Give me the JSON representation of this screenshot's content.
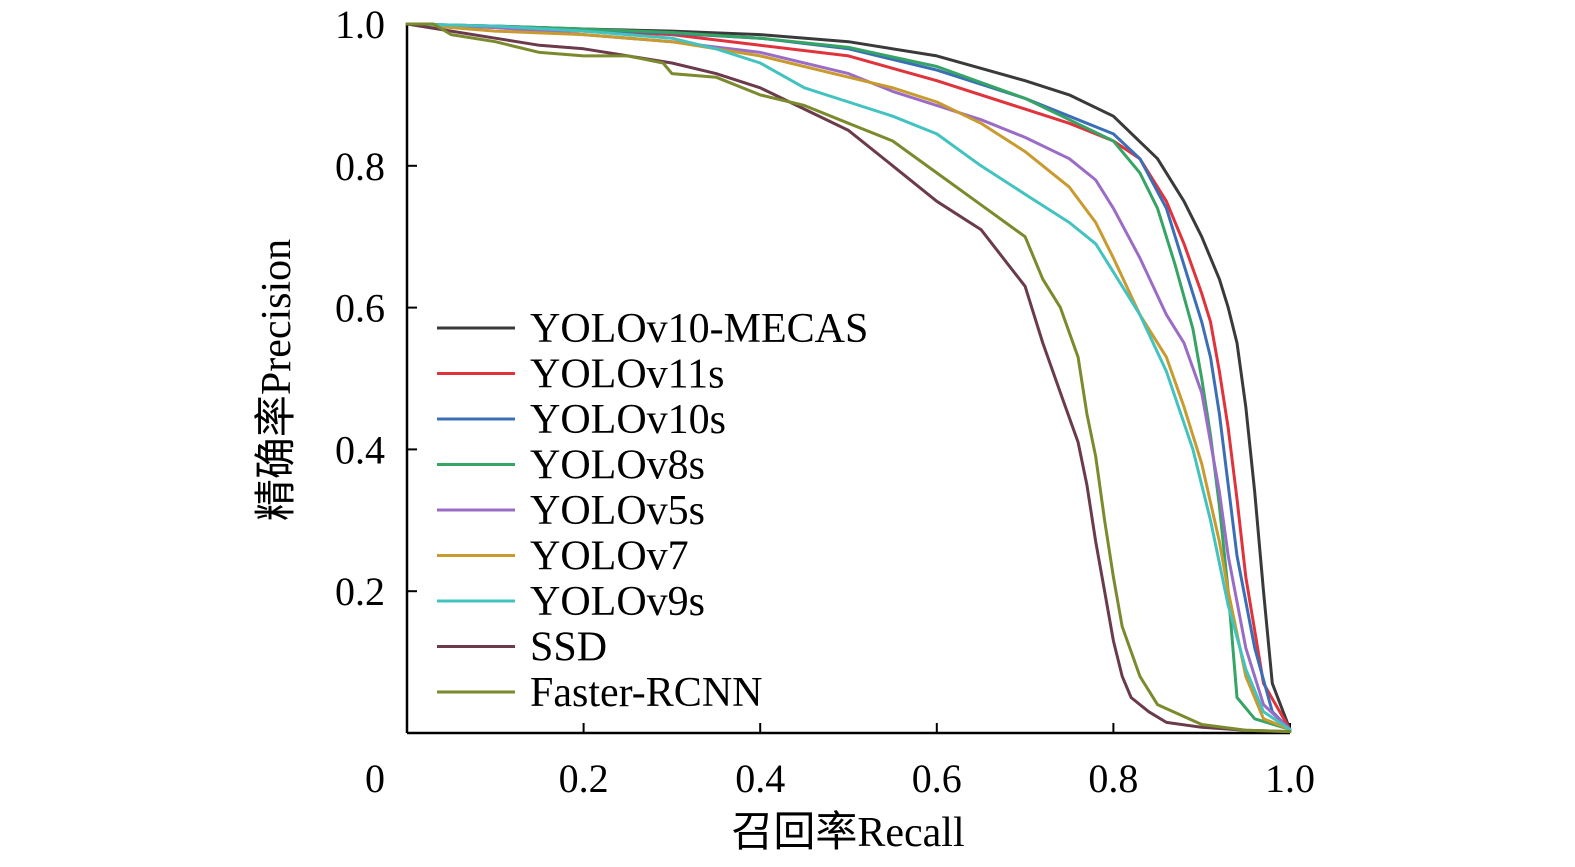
{
  "chart_data": {
    "type": "line",
    "xlabel": "召回率Recall",
    "ylabel": "精确率Precision",
    "xlim": [
      0,
      1
    ],
    "ylim": [
      0,
      1
    ],
    "x_ticks": [
      {
        "value": 0,
        "label": "0"
      },
      {
        "value": 0.2,
        "label": "0.2"
      },
      {
        "value": 0.4,
        "label": "0.4"
      },
      {
        "value": 0.6,
        "label": "0.6"
      },
      {
        "value": 0.8,
        "label": "0.8"
      },
      {
        "value": 1.0,
        "label": "1.0"
      }
    ],
    "y_ticks": [
      {
        "value": 0.2,
        "label": "0.2"
      },
      {
        "value": 0.4,
        "label": "0.4"
      },
      {
        "value": 0.6,
        "label": "0.6"
      },
      {
        "value": 0.8,
        "label": "0.8"
      },
      {
        "value": 1.0,
        "label": "1.0"
      }
    ],
    "grid": false,
    "legend_position": "center-left",
    "series": [
      {
        "name": "YOLOv10-MECAS",
        "color": "#3a3a3a",
        "x": [
          0,
          0.1,
          0.2,
          0.3,
          0.4,
          0.5,
          0.6,
          0.7,
          0.75,
          0.8,
          0.85,
          0.88,
          0.9,
          0.92,
          0.93,
          0.94,
          0.95,
          0.96,
          0.97,
          0.98,
          1.0
        ],
        "y": [
          1.0,
          0.997,
          0.993,
          0.99,
          0.985,
          0.975,
          0.955,
          0.92,
          0.9,
          0.87,
          0.81,
          0.75,
          0.7,
          0.64,
          0.6,
          0.55,
          0.46,
          0.34,
          0.2,
          0.07,
          0.005
        ]
      },
      {
        "name": "YOLOv11s",
        "color": "#e0333c",
        "x": [
          0,
          0.1,
          0.2,
          0.3,
          0.4,
          0.5,
          0.6,
          0.7,
          0.75,
          0.8,
          0.83,
          0.86,
          0.88,
          0.9,
          0.91,
          0.92,
          0.93,
          0.94,
          0.95,
          0.97,
          1.0
        ],
        "y": [
          1.0,
          0.995,
          0.99,
          0.985,
          0.97,
          0.955,
          0.92,
          0.88,
          0.86,
          0.835,
          0.81,
          0.75,
          0.69,
          0.62,
          0.58,
          0.51,
          0.43,
          0.33,
          0.22,
          0.07,
          0.005
        ]
      },
      {
        "name": "YOLOv10s",
        "color": "#3a6fb7",
        "x": [
          0,
          0.1,
          0.2,
          0.3,
          0.4,
          0.5,
          0.6,
          0.7,
          0.75,
          0.8,
          0.83,
          0.86,
          0.88,
          0.9,
          0.91,
          0.92,
          0.93,
          0.94,
          0.96,
          0.98,
          1.0
        ],
        "y": [
          1.0,
          0.996,
          0.992,
          0.987,
          0.98,
          0.965,
          0.935,
          0.895,
          0.87,
          0.845,
          0.81,
          0.74,
          0.66,
          0.58,
          0.53,
          0.45,
          0.35,
          0.25,
          0.12,
          0.03,
          0.005
        ]
      },
      {
        "name": "YOLOv8s",
        "color": "#35a465",
        "x": [
          0,
          0.1,
          0.2,
          0.3,
          0.4,
          0.5,
          0.6,
          0.7,
          0.75,
          0.8,
          0.83,
          0.85,
          0.87,
          0.89,
          0.9,
          0.91,
          0.92,
          0.93,
          0.94,
          0.96,
          1.0
        ],
        "y": [
          1.0,
          0.997,
          0.993,
          0.988,
          0.98,
          0.967,
          0.94,
          0.895,
          0.865,
          0.835,
          0.79,
          0.74,
          0.66,
          0.57,
          0.5,
          0.42,
          0.32,
          0.2,
          0.05,
          0.02,
          0.005
        ]
      },
      {
        "name": "YOLOv5s",
        "color": "#9a6cc6",
        "x": [
          0,
          0.1,
          0.2,
          0.3,
          0.4,
          0.5,
          0.55,
          0.6,
          0.65,
          0.7,
          0.75,
          0.78,
          0.8,
          0.83,
          0.86,
          0.88,
          0.9,
          0.92,
          0.93,
          0.95,
          0.97,
          1.0
        ],
        "y": [
          1.0,
          0.995,
          0.985,
          0.975,
          0.96,
          0.93,
          0.905,
          0.885,
          0.865,
          0.84,
          0.81,
          0.78,
          0.74,
          0.67,
          0.59,
          0.55,
          0.48,
          0.34,
          0.25,
          0.12,
          0.04,
          0.005
        ]
      },
      {
        "name": "YOLOv7",
        "color": "#c99a2e",
        "x": [
          0,
          0.1,
          0.2,
          0.3,
          0.4,
          0.5,
          0.55,
          0.6,
          0.65,
          0.7,
          0.75,
          0.78,
          0.8,
          0.83,
          0.86,
          0.88,
          0.9,
          0.92,
          0.93,
          0.95,
          0.97,
          1.0
        ],
        "y": [
          1.0,
          0.99,
          0.985,
          0.975,
          0.955,
          0.925,
          0.91,
          0.89,
          0.86,
          0.82,
          0.77,
          0.72,
          0.67,
          0.59,
          0.53,
          0.46,
          0.38,
          0.27,
          0.2,
          0.08,
          0.02,
          0.005
        ]
      },
      {
        "name": "YOLOv9s",
        "color": "#42c3c0",
        "x": [
          0,
          0.1,
          0.2,
          0.3,
          0.35,
          0.4,
          0.45,
          0.5,
          0.55,
          0.6,
          0.65,
          0.7,
          0.75,
          0.78,
          0.8,
          0.83,
          0.86,
          0.89,
          0.91,
          0.93,
          0.95,
          0.97,
          1.0
        ],
        "y": [
          1.0,
          0.997,
          0.99,
          0.98,
          0.965,
          0.945,
          0.91,
          0.89,
          0.87,
          0.845,
          0.8,
          0.76,
          0.72,
          0.69,
          0.65,
          0.59,
          0.51,
          0.4,
          0.3,
          0.18,
          0.09,
          0.03,
          0.005
        ]
      },
      {
        "name": "SSD",
        "color": "#6b3b4b",
        "x": [
          0,
          0.05,
          0.1,
          0.15,
          0.2,
          0.25,
          0.3,
          0.35,
          0.4,
          0.45,
          0.5,
          0.55,
          0.6,
          0.65,
          0.7,
          0.72,
          0.74,
          0.76,
          0.77,
          0.78,
          0.79,
          0.8,
          0.81,
          0.82,
          0.84,
          0.86,
          0.9,
          0.95,
          1.0
        ],
        "y": [
          1.0,
          0.99,
          0.98,
          0.97,
          0.965,
          0.955,
          0.945,
          0.93,
          0.91,
          0.88,
          0.85,
          0.8,
          0.75,
          0.71,
          0.63,
          0.55,
          0.48,
          0.41,
          0.35,
          0.27,
          0.2,
          0.13,
          0.08,
          0.05,
          0.03,
          0.015,
          0.008,
          0.004,
          0.002
        ]
      },
      {
        "name": "Faster-RCNN",
        "color": "#7a8a2c",
        "x": [
          0,
          0.03,
          0.05,
          0.1,
          0.15,
          0.2,
          0.25,
          0.29,
          0.3,
          0.35,
          0.4,
          0.45,
          0.5,
          0.55,
          0.6,
          0.65,
          0.7,
          0.72,
          0.74,
          0.76,
          0.77,
          0.78,
          0.79,
          0.8,
          0.81,
          0.83,
          0.85,
          0.9,
          0.95,
          1.0
        ],
        "y": [
          1.0,
          1.0,
          0.985,
          0.975,
          0.96,
          0.955,
          0.955,
          0.945,
          0.93,
          0.925,
          0.9,
          0.885,
          0.86,
          0.835,
          0.79,
          0.745,
          0.7,
          0.64,
          0.6,
          0.53,
          0.45,
          0.39,
          0.3,
          0.22,
          0.15,
          0.08,
          0.04,
          0.012,
          0.004,
          0.002
        ]
      }
    ]
  }
}
